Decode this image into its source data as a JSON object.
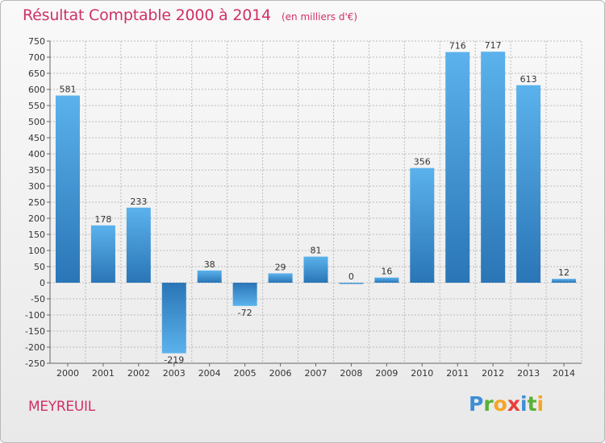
{
  "header": {
    "title": "Résultat Comptable 2000 à 2014",
    "subtitle": "(en milliers d'€)"
  },
  "footer": {
    "city": "MEYREUIL",
    "brand": [
      "P",
      "r",
      "o",
      "x",
      "i",
      "t",
      "i"
    ],
    "brand_colors": [
      "#3d8ed6",
      "#59b135",
      "#f5a623",
      "#e8403a",
      "#3d8ed6",
      "#59b135",
      "#f5a623"
    ]
  },
  "colors": {
    "bar_light": "#5bb2ec",
    "bar_dark": "#2a75b6",
    "grid": "#bbbbbb",
    "text": "#d03068"
  },
  "chart_data": {
    "type": "bar",
    "categories": [
      "2000",
      "2001",
      "2002",
      "2003",
      "2004",
      "2005",
      "2006",
      "2007",
      "2008",
      "2009",
      "2010",
      "2011",
      "2012",
      "2013",
      "2014"
    ],
    "values": [
      581,
      178,
      233,
      -219,
      38,
      -72,
      29,
      81,
      0,
      16,
      356,
      716,
      717,
      613,
      12
    ],
    "value_labels": [
      "581",
      "178",
      "233",
      "-219",
      "38",
      "-72",
      "29",
      "81",
      "0",
      "16",
      "356",
      "716",
      "717",
      "613",
      "12"
    ],
    "yticks": [
      750,
      700,
      650,
      600,
      550,
      500,
      450,
      400,
      350,
      300,
      250,
      200,
      150,
      100,
      50,
      0,
      -50,
      -100,
      -150,
      -200,
      -250
    ],
    "ylim": [
      -250,
      750
    ],
    "grid": true,
    "title": "Résultat Comptable 2000 à 2014",
    "xlabel": "",
    "ylabel": ""
  }
}
